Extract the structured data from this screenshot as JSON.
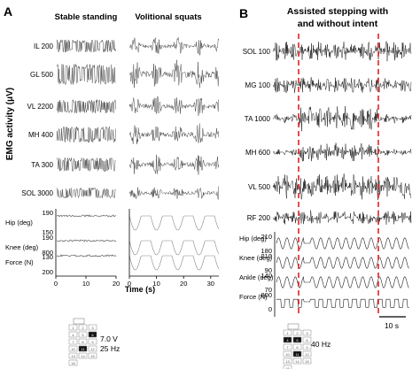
{
  "panel_a": {
    "letter": "A",
    "heading_stable": "Stable standing",
    "heading_squats": "Volitional squats",
    "y_axis_title": "EMG activity (μV)",
    "emg_channels": [
      {
        "label": "IL 200",
        "amp": 0.55
      },
      {
        "label": "GL 500",
        "amp": 0.9
      },
      {
        "label": "VL 2200",
        "amp": 0.6
      },
      {
        "label": "MH 400",
        "amp": 0.7
      },
      {
        "label": "TA 300",
        "amp": 0.6
      },
      {
        "label": "SOL 3000",
        "amp": 0.45
      }
    ],
    "kin_channels": [
      {
        "label": "Hip (deg)",
        "top": "190",
        "bottom": "150"
      },
      {
        "label": "Knee (deg)",
        "top": "190",
        "bottom": "130"
      },
      {
        "label": "Force (N)",
        "top": "800",
        "bottom": "200"
      }
    ],
    "x_ticks_left": [
      "0",
      "10",
      "20"
    ],
    "x_ticks_right": [
      "0",
      "10",
      "20",
      "30"
    ],
    "x_axis_label": "Time (s)",
    "stim_voltage": "7.0 V",
    "stim_frequency": "25 Hz"
  },
  "panel_b": {
    "letter": "B",
    "heading_line1": "Assisted stepping with",
    "heading_line2": "and without intent",
    "emg_channels": [
      {
        "label": "SOL 100",
        "amp": 0.75
      },
      {
        "label": "MG 100",
        "amp": 0.6
      },
      {
        "label": "TA 1000",
        "amp": 0.95
      },
      {
        "label": "MH 600",
        "amp": 0.7
      },
      {
        "label": "VL 500",
        "amp": 0.95
      },
      {
        "label": "RF 200",
        "amp": 0.55
      }
    ],
    "kin_channels": [
      {
        "label": "Hip (deg)",
        "top": "210",
        "bottom": "180"
      },
      {
        "label": "Knee (deg)",
        "top": "210",
        "bottom": "90"
      },
      {
        "label": "Ankle (deg)",
        "top": "140",
        "bottom": "70"
      },
      {
        "label": "Force (N)",
        "top": "800",
        "bottom": "0"
      }
    ],
    "scale_bar_label": "10 s",
    "stim_frequency": "40 Hz",
    "marker_color": "#e52020"
  },
  "electrode_grid_a": {
    "numbers": [
      "1",
      "2",
      "3",
      "4",
      "5",
      "6",
      "7",
      "8",
      "9",
      "10",
      "11",
      "12",
      "13",
      "14",
      "15",
      "16"
    ],
    "active": [
      "6",
      "11"
    ]
  },
  "electrode_grid_b": {
    "numbers": [
      "1",
      "2",
      "3",
      "4",
      "5",
      "6",
      "7",
      "8",
      "9",
      "10",
      "11",
      "12",
      "13",
      "14",
      "15",
      "16"
    ],
    "active": [
      "4",
      "5",
      "11"
    ]
  }
}
